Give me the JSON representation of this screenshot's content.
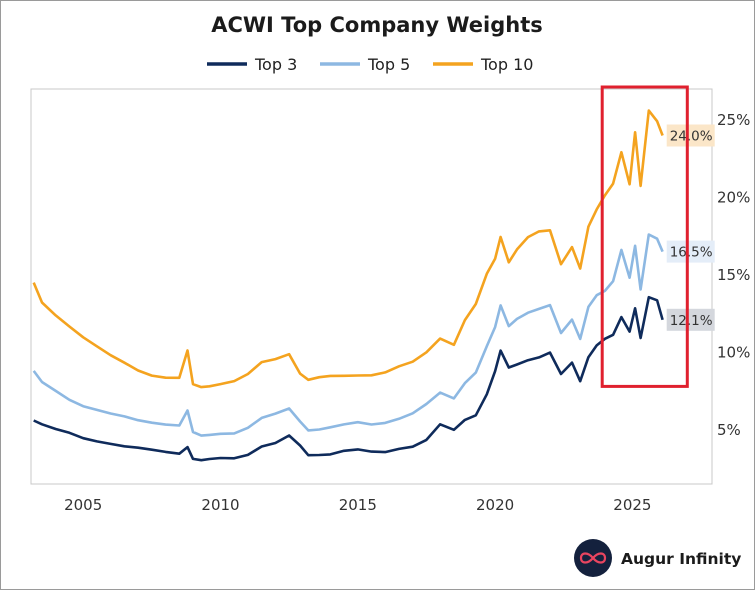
{
  "colors": {
    "top3": "#0f2b5b",
    "top5": "#8db8e2",
    "top10": "#f4a31f",
    "highlight": "#e0202e",
    "axis": "#9a9a9a",
    "plot_border": "#c8c8c8"
  },
  "brand": {
    "name": "Augur Infinity",
    "icon": "infinity-logo-icon"
  },
  "chart_data": {
    "type": "line",
    "title": "ACWI Top Company Weights",
    "xlabel": "",
    "ylabel": "",
    "x_ticks": [
      "2005",
      "2010",
      "2015",
      "2020",
      "2025"
    ],
    "x_tick_values": [
      2005,
      2010,
      2015,
      2020,
      2025
    ],
    "y_ticks": [
      "5%",
      "10%",
      "15%",
      "20%",
      "25%"
    ],
    "y_tick_values": [
      5,
      10,
      15,
      20,
      25
    ],
    "xlim": [
      2003.1,
      2027.9
    ],
    "ylim": [
      1.5,
      27.0
    ],
    "legend_position": "top-center",
    "highlight_box": {
      "x_range": [
        2023.9,
        2027.0
      ],
      "y_range": [
        7.8,
        28.0
      ]
    },
    "end_labels": [
      {
        "series": "Top 10",
        "text": "24.0%",
        "value": 24.0,
        "bg": "#fbe6c8"
      },
      {
        "series": "Top 5",
        "text": "16.5%",
        "value": 16.5,
        "bg": "#e4edf8"
      },
      {
        "series": "Top 3",
        "text": "12.1%",
        "value": 12.1,
        "bg": "#d4d7dd"
      }
    ],
    "x": [
      2003.2,
      2003.5,
      2004.0,
      2004.5,
      2005.0,
      2005.5,
      2006.0,
      2006.5,
      2007.0,
      2007.5,
      2008.0,
      2008.5,
      2008.8,
      2009.0,
      2009.3,
      2009.6,
      2010.0,
      2010.5,
      2011.0,
      2011.5,
      2012.0,
      2012.5,
      2012.9,
      2013.2,
      2013.6,
      2014.0,
      2014.5,
      2015.0,
      2015.5,
      2016.0,
      2016.5,
      2017.0,
      2017.5,
      2018.0,
      2018.5,
      2018.9,
      2019.3,
      2019.7,
      2020.0,
      2020.2,
      2020.5,
      2020.8,
      2021.2,
      2021.6,
      2022.0,
      2022.4,
      2022.8,
      2023.1,
      2023.4,
      2023.7,
      2024.0,
      2024.3,
      2024.6,
      2024.9,
      2025.1,
      2025.3,
      2025.6,
      2025.9,
      2026.1
    ],
    "series": [
      {
        "name": "Top 3",
        "values": [
          5.6,
          5.3,
          5.0,
          4.8,
          4.5,
          4.3,
          4.1,
          3.9,
          3.8,
          3.7,
          3.6,
          3.5,
          3.9,
          3.1,
          3.0,
          3.1,
          3.2,
          3.2,
          3.4,
          3.9,
          4.1,
          4.6,
          4.0,
          3.4,
          3.4,
          3.4,
          3.6,
          3.7,
          3.6,
          3.6,
          3.8,
          3.9,
          4.3,
          5.3,
          5.0,
          5.7,
          6.0,
          7.3,
          8.7,
          10.0,
          9.0,
          9.3,
          9.6,
          9.7,
          9.9,
          8.5,
          9.3,
          8.2,
          9.8,
          10.5,
          10.8,
          11.0,
          12.2,
          11.4,
          13.0,
          11.0,
          13.5,
          13.2,
          12.1
        ]
      },
      {
        "name": "Top 5",
        "values": [
          8.8,
          8.0,
          7.5,
          7.0,
          6.6,
          6.3,
          6.0,
          5.8,
          5.6,
          5.5,
          5.4,
          5.3,
          6.2,
          4.8,
          4.6,
          4.7,
          4.8,
          4.8,
          5.1,
          5.7,
          6.0,
          6.4,
          5.6,
          5.0,
          5.0,
          5.1,
          5.3,
          5.5,
          5.4,
          5.5,
          5.7,
          6.0,
          6.6,
          7.4,
          7.1,
          8.1,
          8.7,
          10.3,
          11.5,
          13.0,
          11.8,
          12.3,
          12.6,
          12.7,
          12.9,
          11.2,
          12.2,
          11.0,
          13.0,
          13.6,
          13.8,
          14.5,
          16.7,
          15.0,
          17.0,
          14.0,
          17.4,
          17.2,
          16.5
        ]
      },
      {
        "name": "Top 10",
        "values": [
          14.5,
          13.2,
          12.5,
          11.8,
          11.0,
          10.3,
          9.7,
          9.3,
          8.9,
          8.6,
          8.4,
          8.3,
          10.0,
          7.9,
          7.8,
          7.9,
          8.0,
          8.1,
          8.5,
          9.3,
          9.6,
          10.0,
          8.7,
          8.2,
          8.3,
          8.4,
          8.5,
          8.6,
          8.6,
          8.7,
          9.0,
          9.3,
          10.0,
          11.0,
          10.6,
          12.1,
          13.0,
          14.9,
          16.0,
          17.6,
          16.0,
          16.7,
          17.3,
          17.6,
          17.8,
          15.8,
          17.0,
          15.5,
          18.0,
          19.0,
          20.0,
          21.0,
          23.2,
          21.0,
          24.1,
          20.5,
          25.4,
          25.0,
          24.0
        ]
      }
    ]
  }
}
